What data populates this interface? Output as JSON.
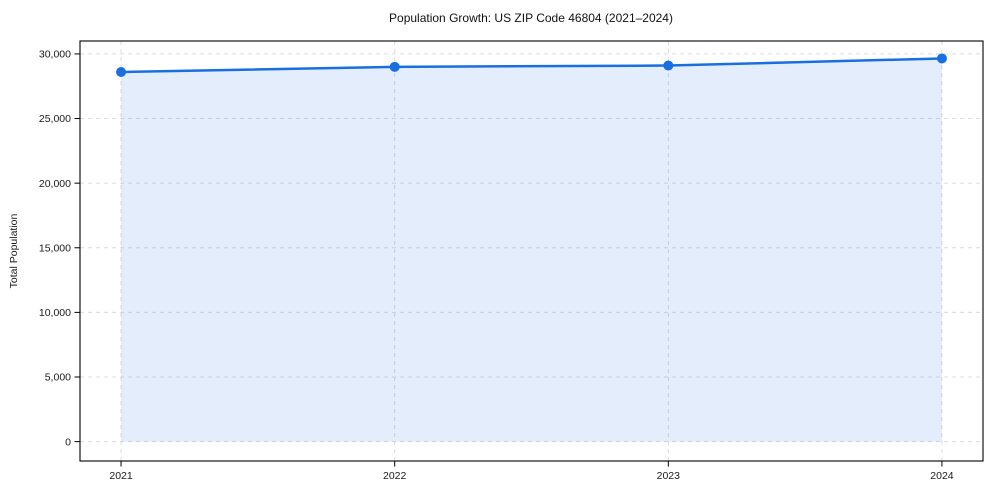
{
  "figure": {
    "title": "Population Growth: US ZIP Code 46804 (2021–2024)"
  },
  "chart_data": {
    "type": "line",
    "title": "Population Growth: US ZIP Code 46804 (2021–2024)",
    "xlabel": "",
    "ylabel": "Total Population",
    "x": [
      2021,
      2022,
      2023,
      2024
    ],
    "x_tick_labels": [
      "2021",
      "2022",
      "2023",
      "2024"
    ],
    "values": [
      28600,
      29000,
      29100,
      29650
    ],
    "series_name": "Total Population",
    "y_ticks": [
      0,
      5000,
      10000,
      15000,
      20000,
      25000,
      30000
    ],
    "y_tick_labels": [
      "0",
      "5,000",
      "10,000",
      "15,000",
      "20,000",
      "25,000",
      "30,000"
    ],
    "xlim": [
      2020.85,
      2024.15
    ],
    "ylim": [
      -1500,
      31000
    ],
    "grid": true,
    "grid_style": "dashed",
    "legend": "none",
    "area_fill": true,
    "marker": "circle",
    "colors": {
      "line": "#1a6fe0",
      "marker": "#1a6fe0",
      "area_opacity": 0.12,
      "grid": "#dcdcdc",
      "spine": "#000000",
      "background": "#ffffff"
    }
  }
}
